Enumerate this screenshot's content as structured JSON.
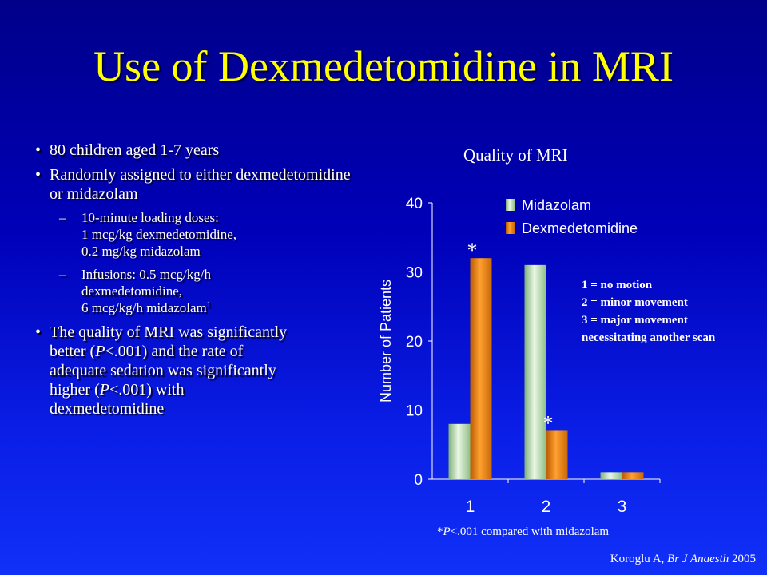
{
  "slide": {
    "title": "Use of Dexmedetomidine in MRI",
    "bullets": [
      {
        "text": "80 children aged 1-7 years"
      },
      {
        "text": "Randomly assigned to either dexmedetomidine or midazolam"
      }
    ],
    "sub_bullets": [
      {
        "lines": [
          "10-minute loading doses:",
          "1 mcg/kg dexmedetomidine,",
          "0.2 mg/kg midazolam"
        ]
      },
      {
        "lines": [
          "Infusions: 0.5 mcg/kg/h",
          "dexmedetomidine,",
          "6 mcg/kg/h midazolam"
        ],
        "sup": "1"
      }
    ],
    "bullet3": {
      "l1": "The quality of MRI was significantly",
      "l2a": "better (",
      "l2p": "P",
      "l2b": "<.001) and the rate of",
      "l3": "adequate sedation was significantly",
      "l4a": "higher (",
      "l4p": "P",
      "l4b": "<.001) with",
      "l5": "dexmedetomidine"
    },
    "footnote": {
      "star": "*",
      "p": "P",
      "rest": "<.001 compared with midazolam"
    },
    "citation": {
      "author": "Koroglu A, ",
      "journal": "Br J Anaesth",
      "year": " 2005"
    }
  },
  "colors": {
    "background_top": "#00008a",
    "background_bottom": "#1030f8",
    "title": "#ffff00",
    "midazolam": "#b8e0b0",
    "dexmedetomidine": "#e07810"
  },
  "chart_data": {
    "type": "bar",
    "title": "Quality of MRI",
    "xlabel": "",
    "ylabel": "Number of Patients",
    "categories": [
      "1",
      "2",
      "3"
    ],
    "series": [
      {
        "name": "Midazolam",
        "values": [
          8,
          31,
          1
        ]
      },
      {
        "name": "Dexmedetomidine",
        "values": [
          32,
          7,
          1
        ]
      }
    ],
    "ylim": [
      0,
      40
    ],
    "yticks": [
      "0",
      "10",
      "20",
      "30",
      "40"
    ],
    "grid": false,
    "legend": "top-right",
    "significance_markers": [
      {
        "category": "1",
        "series": "Dexmedetomidine",
        "label": "*"
      },
      {
        "category": "2",
        "series": "Dexmedetomidine",
        "label": "*"
      }
    ],
    "annotation_lines": [
      "1 = no motion",
      "2 = minor movement",
      "3 = major movement",
      "necessitating another scan"
    ]
  }
}
